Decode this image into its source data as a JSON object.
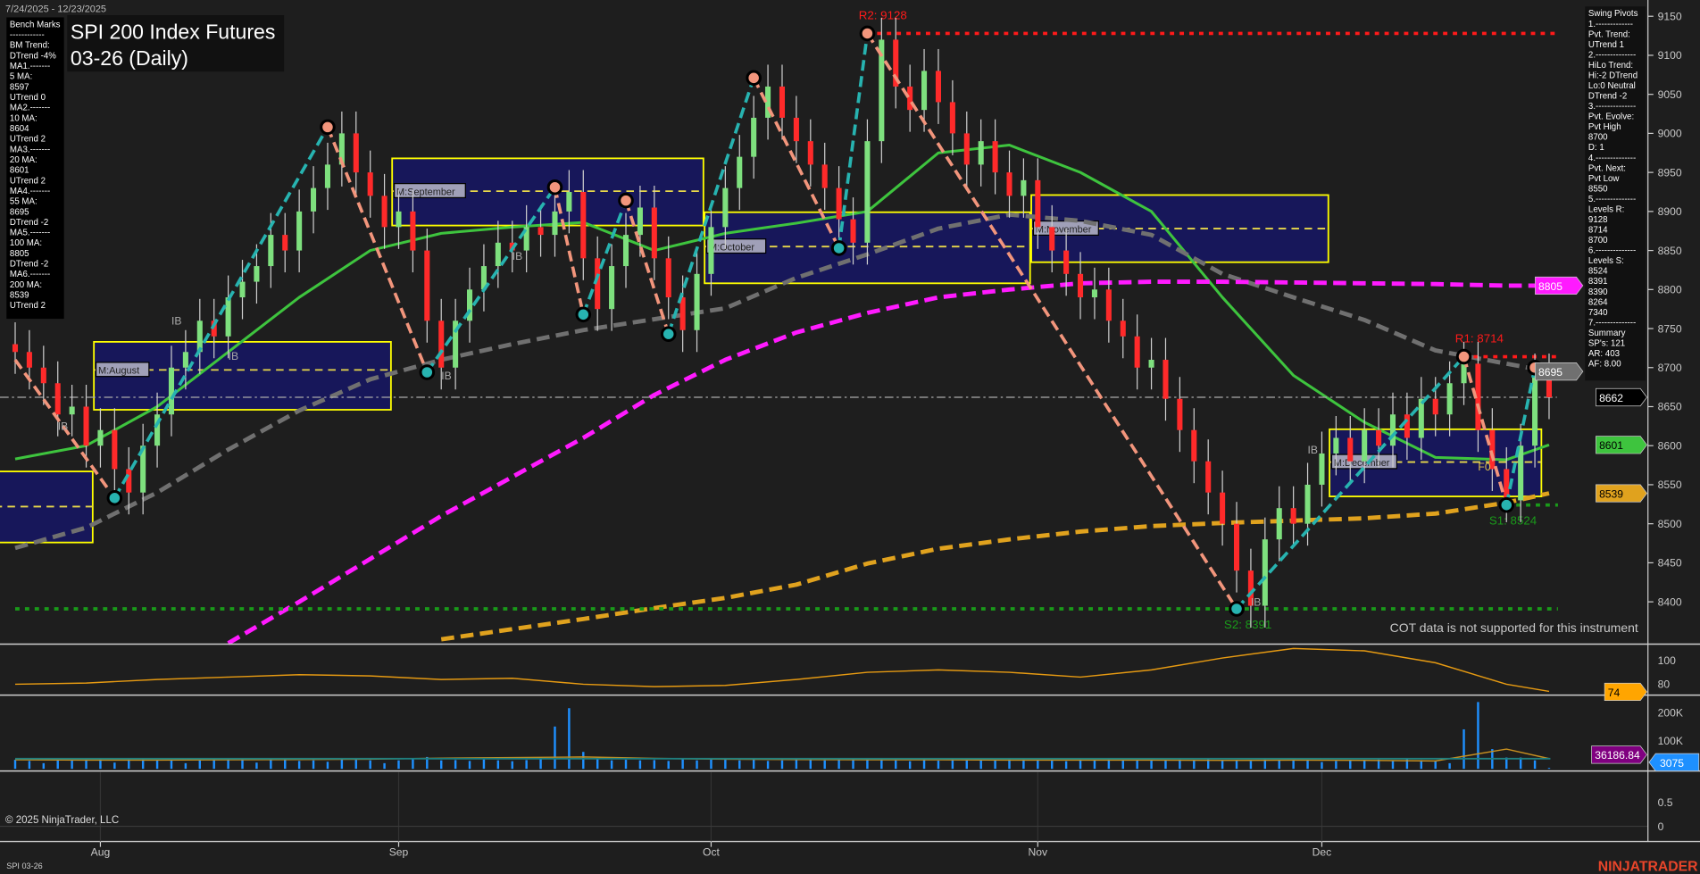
{
  "header": {
    "date_range": "7/24/2025 - 12/23/2025",
    "title_line1": "SPI 200 Index Futures",
    "title_line2": "03-26 (Daily)"
  },
  "footer": {
    "copyright": "© 2025 NinjaTrader, LLC",
    "instrument": "SPI 03-26",
    "brand": "NINJATRADER",
    "cot_note": "COT data is not supported for this instrument"
  },
  "bench_marks": [
    "Bench Marks",
    "------------",
    "BM Trend:",
    "DTrend -4%",
    "MA1.-------",
    "5 MA:",
    "8597",
    "UTrend 0",
    "MA2.-------",
    "10 MA:",
    "8604",
    "UTrend 2",
    "MA3.-------",
    "20 MA:",
    "8601",
    "UTrend 2",
    "MA4.-------",
    "55 MA:",
    "8695",
    "DTrend -2",
    "MA5.-------",
    "100 MA:",
    "8805",
    "DTrend -2",
    "MA6.-------",
    "200 MA:",
    "8539",
    "UTrend 2"
  ],
  "swing_pivots": [
    "Swing Pivots",
    "1.-------------",
    "Pvt. Trend:",
    "UTrend 1",
    "2.--------------",
    "HiLo Trend:",
    "Hi:-2 DTrend",
    "Lo:0 Neutral",
    "DTrend -2",
    "3.--------------",
    "Pvt. Evolve:",
    "Pvt High",
    "8700",
    "D: 1",
    "4.--------------",
    "Pvt. Next:",
    "Pvt Low",
    "8550",
    "5.--------------",
    "Levels R:",
    "9128",
    "8714",
    "8700",
    "6.--------------",
    "Levels S:",
    "8524",
    "8391",
    "8390",
    "8264",
    "7340",
    "7.--------------",
    "Summary",
    "SP's: 121",
    "AR: 403",
    "AF: 8.00"
  ],
  "colors": {
    "background": "#1e1e1e",
    "up_candle": "#7ee07e",
    "down_candle": "#ff2a2a",
    "ma20": "#3ec43e",
    "ma55": "#707070",
    "ma100": "#ff1aff",
    "ma200": "#e0a21e",
    "zigzag_up": "#27b3b0",
    "zigzag_down": "#f2957c",
    "resistance": "#ff1a1a",
    "support": "#1a9a1a",
    "month_box_fill": "#17175a",
    "month_box_border": "#ffff00",
    "volume": "#1e90ff",
    "oscillator": "#e69a12",
    "brand": "#e8452a"
  },
  "chart_data": [
    {
      "type": "candlestick",
      "panel": "price",
      "start_date": "2025-07-24",
      "end_date": "2025-12-23",
      "ylim": [
        8350,
        9170
      ],
      "y_ticks": [
        9150,
        9100,
        9050,
        9000,
        8950,
        8900,
        8850,
        8800,
        8750,
        8700,
        8650,
        8600,
        8550,
        8500,
        8450,
        8400
      ],
      "x_tick_labels": [
        "Aug",
        "Sep",
        "Oct",
        "Nov",
        "Dec"
      ],
      "x_tick_dates": [
        "2025-08-01",
        "2025-09-01",
        "2025-10-01",
        "2025-11-03",
        "2025-12-01"
      ],
      "closes": [
        8720,
        8700,
        8680,
        8640,
        8650,
        8600,
        8620,
        8570,
        8540,
        8600,
        8640,
        8700,
        8720,
        8760,
        8740,
        8790,
        8810,
        8830,
        8870,
        8850,
        8900,
        8930,
        8960,
        9000,
        8950,
        8920,
        8880,
        8900,
        8850,
        8760,
        8700,
        8760,
        8800,
        8830,
        8860,
        8850,
        8880,
        8870,
        8900,
        8925,
        8840,
        8775,
        8830,
        8870,
        8905,
        8840,
        8790,
        8748,
        8820,
        8880,
        8930,
        8970,
        9020,
        9060,
        9020,
        8990,
        8960,
        8930,
        8890,
        8860,
        8990,
        9120,
        9060,
        9030,
        9080,
        9040,
        9000,
        8960,
        8990,
        8950,
        8920,
        8940,
        8880,
        8850,
        8820,
        8790,
        8800,
        8760,
        8740,
        8700,
        8710,
        8660,
        8620,
        8580,
        8540,
        8500,
        8440,
        8395,
        8480,
        8520,
        8500,
        8550,
        8590,
        8610,
        8580,
        8620,
        8600,
        8640,
        8610,
        8660,
        8640,
        8680,
        8705,
        8620,
        8570,
        8530,
        8600,
        8690,
        8662
      ],
      "sample_dates": [
        "2025-07-24",
        "2025-07-31",
        "2025-08-07",
        "2025-08-14",
        "2025-08-21",
        "2025-08-28",
        "2025-09-04",
        "2025-09-11",
        "2025-09-18",
        "2025-09-25",
        "2025-10-02",
        "2025-10-09",
        "2025-10-16",
        "2025-10-23",
        "2025-10-30",
        "2025-11-06",
        "2025-11-13",
        "2025-11-20",
        "2025-11-27",
        "2025-12-04",
        "2025-12-11",
        "2025-12-18",
        "2025-12-23"
      ],
      "moving_averages": [
        {
          "name": "20 MA",
          "color_key": "ma20",
          "style": "solid",
          "values": [
            8583,
            8600,
            8650,
            8720,
            8790,
            8850,
            8872,
            8880,
            8886,
            8850,
            8872,
            8885,
            8900,
            8975,
            8985,
            8950,
            8900,
            8790,
            8690,
            8630,
            8585,
            8582,
            8601
          ]
        },
        {
          "name": "55 MA",
          "color_key": "ma55",
          "style": "dash",
          "values": [
            8469,
            8495,
            8540,
            8595,
            8645,
            8685,
            8710,
            8730,
            8748,
            8762,
            8776,
            8815,
            8845,
            8878,
            8896,
            8888,
            8870,
            8820,
            8790,
            8761,
            8722,
            8705,
            8695
          ]
        },
        {
          "name": "100 MA",
          "color_key": "ma100",
          "style": "dash",
          "values": [
            null,
            null,
            null,
            8347,
            8400,
            8455,
            8510,
            8560,
            8610,
            8665,
            8710,
            8745,
            8770,
            8790,
            8800,
            8808,
            8810,
            8810,
            8809,
            8808,
            8807,
            8805,
            8805
          ]
        },
        {
          "name": "200 MA",
          "color_key": "ma200",
          "style": "dash",
          "values": [
            null,
            null,
            null,
            null,
            null,
            null,
            8352,
            8365,
            8378,
            8392,
            8405,
            8422,
            8449,
            8468,
            8480,
            8490,
            8497,
            8501,
            8504,
            8507,
            8513,
            8527,
            8539
          ]
        }
      ],
      "swing_pivots": [
        {
          "date": "2025-07-24",
          "price": 8710
        },
        {
          "date": "2025-08-04",
          "price": 8533
        },
        {
          "date": "2025-08-25",
          "price": 9008
        },
        {
          "date": "2025-09-03",
          "price": 8694
        },
        {
          "date": "2025-09-16",
          "price": 8931
        },
        {
          "date": "2025-09-18",
          "price": 8768
        },
        {
          "date": "2025-09-23",
          "price": 8914
        },
        {
          "date": "2025-09-26",
          "price": 8743
        },
        {
          "date": "2025-10-06",
          "price": 9071
        },
        {
          "date": "2025-10-14",
          "price": 8853
        },
        {
          "date": "2025-10-16",
          "price": 9128
        },
        {
          "date": "2025-11-21",
          "price": 8391
        },
        {
          "date": "2025-12-15",
          "price": 8714
        },
        {
          "date": "2025-12-18",
          "price": 8524
        },
        {
          "date": "2025-12-22",
          "price": 8700
        }
      ],
      "levels": [
        {
          "label": "R2: 9128",
          "price": 9128,
          "kind": "resistance",
          "from": "2025-10-16"
        },
        {
          "label": "R1: 8714",
          "price": 8714,
          "kind": "resistance",
          "from": "2025-12-15"
        },
        {
          "label": "S2: 8391",
          "price": 8391,
          "kind": "support",
          "from": "2025-07-24"
        },
        {
          "label": "S1: 8524",
          "price": 8524,
          "kind": "support",
          "from": "2025-12-18"
        }
      ],
      "month_boxes": [
        {
          "label": "",
          "start": "2025-07-23",
          "end": "2025-07-31",
          "top": 8567,
          "bottom": 8476,
          "mid": 8522
        },
        {
          "label": "M:August",
          "start": "2025-08-01",
          "end": "2025-08-29",
          "top": 8733,
          "bottom": 8646,
          "mid": 8697
        },
        {
          "label": "M:September",
          "start": "2025-09-01",
          "end": "2025-09-30",
          "top": 8968,
          "bottom": 8882,
          "mid": 8926
        },
        {
          "label": "M:October",
          "start": "2025-10-01",
          "end": "2025-10-31",
          "top": 8899,
          "bottom": 8808,
          "mid": 8855
        },
        {
          "label": "M:November",
          "start": "2025-11-03",
          "end": "2025-12-01",
          "top": 8921,
          "bottom": 8835,
          "mid": 8878
        },
        {
          "label": "M:December",
          "start": "2025-12-02",
          "end": "2025-12-22",
          "top": 8621,
          "bottom": 8535,
          "mid": 8579
        }
      ],
      "annotations": [
        {
          "text": "F0",
          "date": "2025-12-16",
          "price": 8568
        },
        {
          "text": "IB",
          "date": "2025-07-29",
          "price": 8620
        },
        {
          "text": "IB",
          "date": "2025-08-08",
          "price": 8755
        },
        {
          "text": "IB",
          "date": "2025-08-14",
          "price": 8710
        },
        {
          "text": "IB",
          "date": "2025-09-04",
          "price": 8685
        },
        {
          "text": "IB",
          "date": "2025-09-11",
          "price": 8838
        },
        {
          "text": "IB",
          "date": "2025-11-28",
          "price": 8590
        },
        {
          "text": "IB",
          "date": "2025-11-24",
          "price": 8395
        }
      ],
      "last_price": 8662,
      "axis_tags": [
        {
          "value": "8805",
          "color_key": "ma100",
          "text_color": "#ffffff"
        },
        {
          "value": "8695",
          "color_key": "ma55",
          "text_color": "#ffffff"
        },
        {
          "value": "8662",
          "color": "#000000",
          "text_color": "#ffffff"
        },
        {
          "value": "8601",
          "color_key": "ma20",
          "text_color": "#000000"
        },
        {
          "value": "8539",
          "color_key": "ma200",
          "text_color": "#000000"
        }
      ]
    },
    {
      "type": "line",
      "panel": "oscillator",
      "ylim": [
        70,
        118
      ],
      "y_ticks": [
        100,
        80
      ],
      "values": [
        80,
        81,
        84,
        86,
        88,
        87,
        84,
        85,
        80,
        78,
        79,
        84,
        90,
        92,
        90,
        86,
        92,
        102,
        110,
        108,
        98,
        80,
        74
      ],
      "last_value": "74"
    },
    {
      "type": "bar",
      "panel": "volume",
      "ylim": [
        0,
        250000
      ],
      "y_ticks": [
        "200K",
        "100K"
      ],
      "y_tick_values": [
        200000,
        100000
      ],
      "values": [
        32000,
        28000,
        20000,
        30000,
        31000,
        33000,
        35000,
        22000,
        34000,
        36000,
        31000,
        30000,
        20000,
        30000,
        34000,
        31000,
        35000,
        22000,
        34000,
        36000,
        28000,
        30000,
        25000,
        33000,
        32000,
        30000,
        20000,
        30000,
        36000,
        42000,
        30000,
        31000,
        28000,
        33000,
        30000,
        27000,
        31000,
        34000,
        150000,
        215000,
        60000,
        36000,
        30000,
        32000,
        30000,
        31000,
        28000,
        34000,
        30000,
        38000,
        32000,
        30000,
        34000,
        28000,
        30000,
        33000,
        31000,
        30000,
        35000,
        37000,
        31000,
        33000,
        30000,
        27000,
        31000,
        29000,
        35000,
        30000,
        32000,
        31000,
        34000,
        33000,
        30000,
        29000,
        27000,
        33000,
        30000,
        34000,
        32000,
        30000,
        31000,
        29000,
        33000,
        30000,
        35000,
        32000,
        30000,
        28000,
        33000,
        30000,
        31000,
        29000,
        24000,
        28000,
        30000,
        31000,
        33000,
        30000,
        34000,
        31000,
        28000,
        20000,
        140000,
        237000,
        70000,
        40000,
        40000,
        30000,
        3075
      ],
      "average_values": [
        32000,
        31000,
        31000,
        32000,
        33000,
        34000,
        38000,
        40000,
        42000,
        37000,
        34000,
        33000,
        32000,
        32000,
        31000,
        31000,
        31000,
        30000,
        31000,
        30000,
        28000,
        70000,
        36187
      ],
      "last_average": "36186.84",
      "last_volume": "3075"
    },
    {
      "type": "line",
      "panel": "lower",
      "ylim": [
        -0.1,
        1
      ],
      "y_ticks": [
        "0.5",
        "0"
      ],
      "y_tick_values": [
        0.5,
        0
      ]
    }
  ]
}
